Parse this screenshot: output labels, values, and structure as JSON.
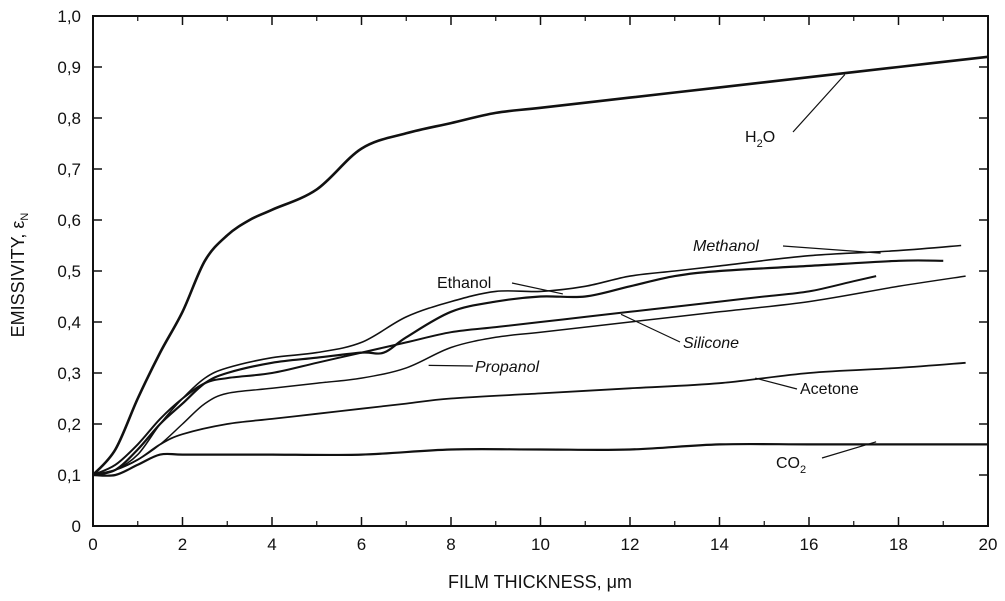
{
  "chart_data": {
    "type": "line",
    "xlabel": "FILM THICKNESS,  μm",
    "ylabel": "EMISSIVITY, ε",
    "ylabel_sub": "N",
    "xlim": [
      0,
      20
    ],
    "ylim": [
      0,
      1.0
    ],
    "x_ticks": [
      0,
      2,
      4,
      6,
      8,
      10,
      12,
      14,
      16,
      18,
      20
    ],
    "y_ticks": [
      "0",
      "0,1",
      "0,2",
      "0,3",
      "0,4",
      "0,5",
      "0,6",
      "0,7",
      "0,8",
      "0,9",
      "1,0"
    ],
    "grid": false,
    "series": [
      {
        "name": "H₂O",
        "label_main": "H",
        "label_sub": "2",
        "label_tail": "O",
        "italic": false,
        "x": [
          0,
          0.5,
          1,
          1.5,
          2,
          2.5,
          3,
          3.5,
          4,
          5,
          6,
          7,
          8,
          9,
          10,
          12,
          14,
          16,
          18,
          20
        ],
        "y": [
          0.1,
          0.15,
          0.25,
          0.34,
          0.42,
          0.52,
          0.57,
          0.6,
          0.62,
          0.66,
          0.74,
          0.77,
          0.79,
          0.81,
          0.82,
          0.84,
          0.86,
          0.88,
          0.9,
          0.92
        ]
      },
      {
        "name": "Methanol",
        "label_main": "Methanol",
        "italic": true,
        "x": [
          0,
          0.5,
          1,
          1.5,
          2,
          2.5,
          3,
          4,
          5,
          6,
          7,
          8,
          9,
          10,
          11,
          12,
          13,
          14,
          16,
          18,
          19.4
        ],
        "y": [
          0.1,
          0.11,
          0.14,
          0.2,
          0.25,
          0.29,
          0.31,
          0.33,
          0.34,
          0.36,
          0.41,
          0.44,
          0.46,
          0.46,
          0.47,
          0.49,
          0.5,
          0.51,
          0.53,
          0.54,
          0.55
        ]
      },
      {
        "name": "Ethanol",
        "label_main": "Ethanol",
        "italic": false,
        "x": [
          0,
          0.5,
          1,
          1.5,
          2,
          2.5,
          3,
          4,
          5,
          6,
          6.5,
          7,
          8,
          9,
          10,
          11,
          12,
          13,
          14,
          16,
          18,
          19
        ],
        "y": [
          0.1,
          0.11,
          0.15,
          0.2,
          0.24,
          0.28,
          0.3,
          0.32,
          0.33,
          0.34,
          0.34,
          0.37,
          0.42,
          0.44,
          0.45,
          0.45,
          0.47,
          0.49,
          0.5,
          0.51,
          0.52,
          0.52
        ]
      },
      {
        "name": "Silicone",
        "label_main": "Silicone",
        "italic": true,
        "x": [
          0,
          0.5,
          1,
          1.5,
          2,
          2.5,
          3,
          4,
          5,
          6,
          7,
          8,
          9,
          10,
          11,
          12,
          13,
          14,
          15,
          16,
          17,
          17.5
        ],
        "y": [
          0.1,
          0.12,
          0.16,
          0.21,
          0.25,
          0.28,
          0.29,
          0.3,
          0.32,
          0.34,
          0.36,
          0.38,
          0.39,
          0.4,
          0.41,
          0.42,
          0.43,
          0.44,
          0.45,
          0.46,
          0.48,
          0.49
        ]
      },
      {
        "name": "Propanol",
        "label_main": "Propanol",
        "italic": true,
        "x": [
          0,
          0.5,
          1,
          1.5,
          2,
          2.5,
          3,
          4,
          5,
          6,
          7,
          8,
          9,
          10,
          12,
          14,
          16,
          18,
          19.5
        ],
        "y": [
          0.1,
          0.11,
          0.13,
          0.16,
          0.2,
          0.24,
          0.26,
          0.27,
          0.28,
          0.29,
          0.31,
          0.35,
          0.37,
          0.38,
          0.4,
          0.42,
          0.44,
          0.47,
          0.49
        ]
      },
      {
        "name": "Acetone",
        "label_main": "Acetone",
        "italic": false,
        "x": [
          0,
          0.5,
          1,
          1.5,
          2,
          3,
          4,
          5,
          6,
          7,
          8,
          10,
          12,
          14,
          16,
          18,
          19.5
        ],
        "y": [
          0.1,
          0.11,
          0.13,
          0.16,
          0.18,
          0.2,
          0.21,
          0.22,
          0.23,
          0.24,
          0.25,
          0.26,
          0.27,
          0.28,
          0.3,
          0.31,
          0.32
        ]
      },
      {
        "name": "CO₂",
        "label_main": "CO",
        "label_sub": "2",
        "label_tail": "",
        "italic": false,
        "x": [
          0,
          0.5,
          1,
          1.5,
          2,
          3,
          4,
          6,
          8,
          10,
          12,
          14,
          16,
          18,
          20
        ],
        "y": [
          0.1,
          0.1,
          0.12,
          0.14,
          0.14,
          0.14,
          0.14,
          0.14,
          0.15,
          0.15,
          0.15,
          0.16,
          0.16,
          0.16,
          0.16
        ]
      }
    ]
  }
}
